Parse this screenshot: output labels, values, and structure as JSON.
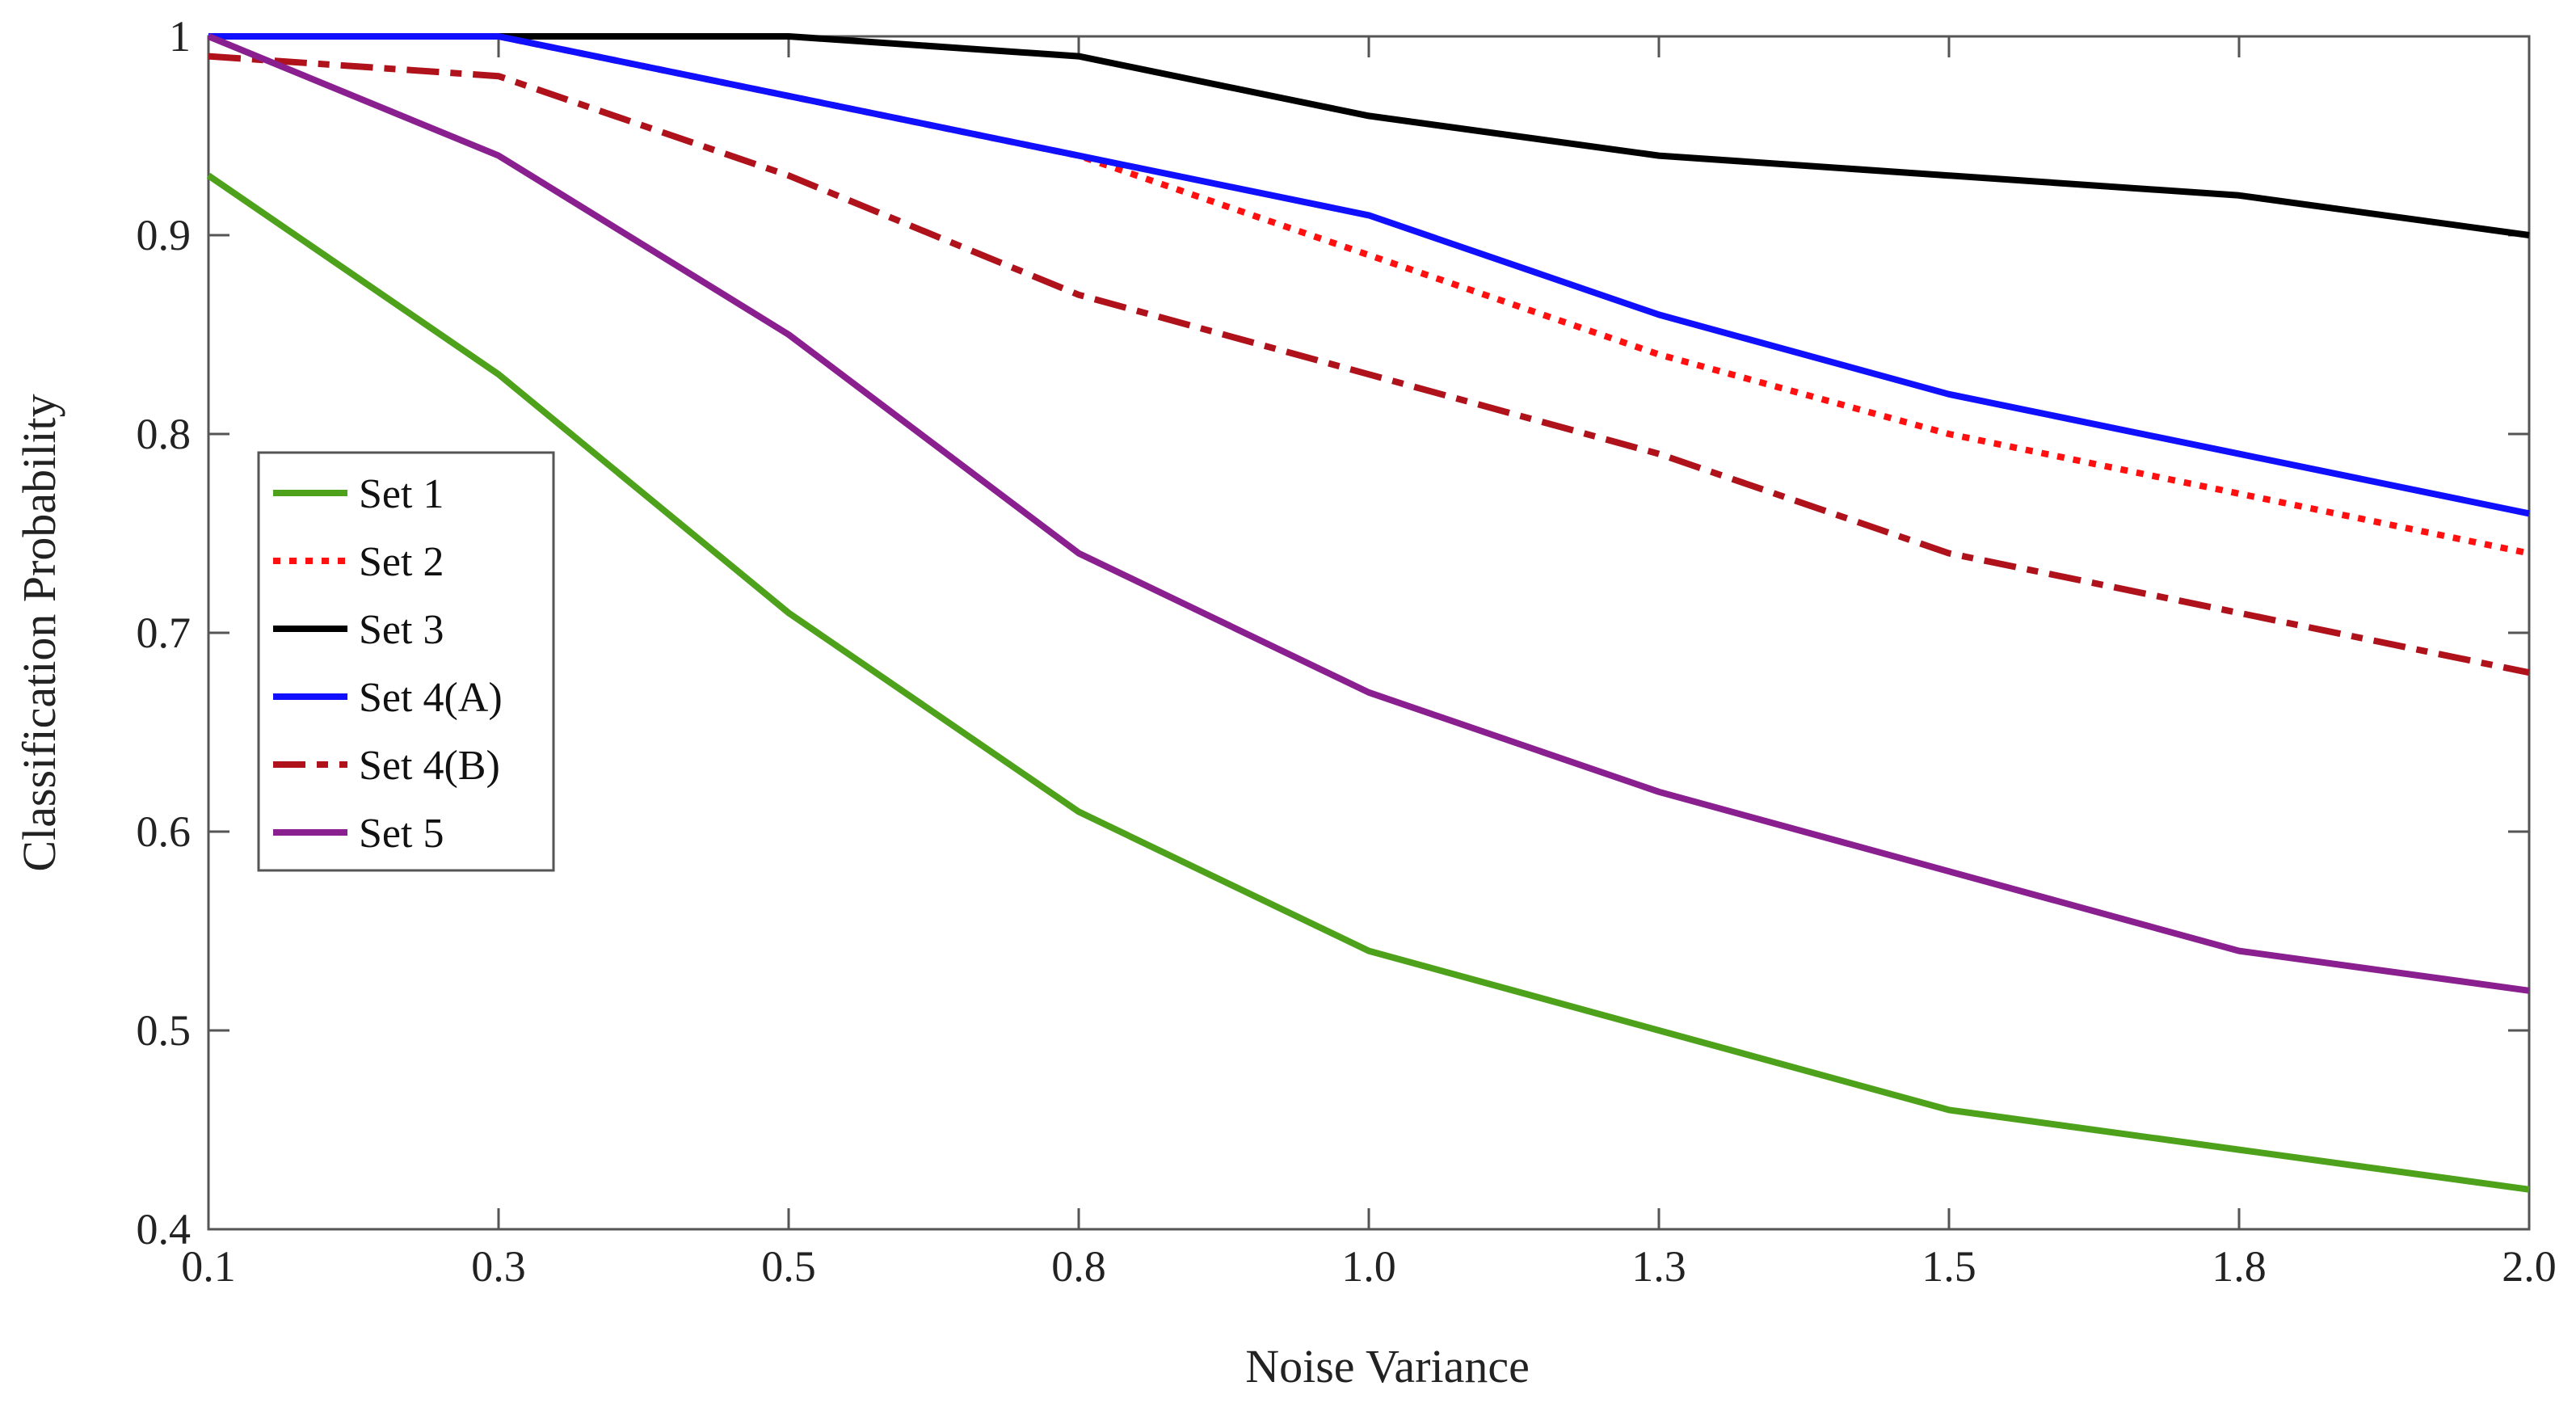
{
  "chart_data": {
    "type": "line",
    "title": "",
    "xlabel": "Noise Variance",
    "ylabel": "Classification Probability",
    "categories": [
      "0.1",
      "0.3",
      "0.5",
      "0.8",
      "1.0",
      "1.3",
      "1.5",
      "1.8",
      "2.0"
    ],
    "ylim": [
      0.4,
      1.0
    ],
    "yticks": [
      "0.4",
      "0.5",
      "0.6",
      "0.7",
      "0.8",
      "0.9",
      "1"
    ],
    "grid": false,
    "legend_position": "middle-left",
    "series": [
      {
        "name": "Set 1",
        "color": "#4ea11a",
        "style": "solid",
        "values": [
          0.93,
          0.83,
          0.71,
          0.61,
          0.54,
          0.5,
          0.46,
          0.44,
          0.42
        ]
      },
      {
        "name": "Set 2",
        "color": "#ff1010",
        "style": "dotted",
        "values": [
          1.0,
          1.0,
          0.97,
          0.94,
          0.89,
          0.84,
          0.8,
          0.77,
          0.74
        ]
      },
      {
        "name": "Set 3",
        "color": "#000000",
        "style": "solid",
        "values": [
          1.0,
          1.0,
          1.0,
          0.99,
          0.96,
          0.94,
          0.93,
          0.92,
          0.9
        ]
      },
      {
        "name": "Set 4(A)",
        "color": "#1010ff",
        "style": "solid",
        "values": [
          1.0,
          1.0,
          0.97,
          0.94,
          0.91,
          0.86,
          0.82,
          0.79,
          0.76
        ]
      },
      {
        "name": "Set 4(B)",
        "color": "#b0121c",
        "style": "dashdot",
        "values": [
          0.99,
          0.98,
          0.93,
          0.87,
          0.83,
          0.79,
          0.74,
          0.71,
          0.68
        ]
      },
      {
        "name": "Set 5",
        "color": "#8a1f8f",
        "style": "solid",
        "values": [
          1.0,
          0.94,
          0.85,
          0.74,
          0.67,
          0.62,
          0.58,
          0.54,
          0.52
        ]
      }
    ]
  }
}
